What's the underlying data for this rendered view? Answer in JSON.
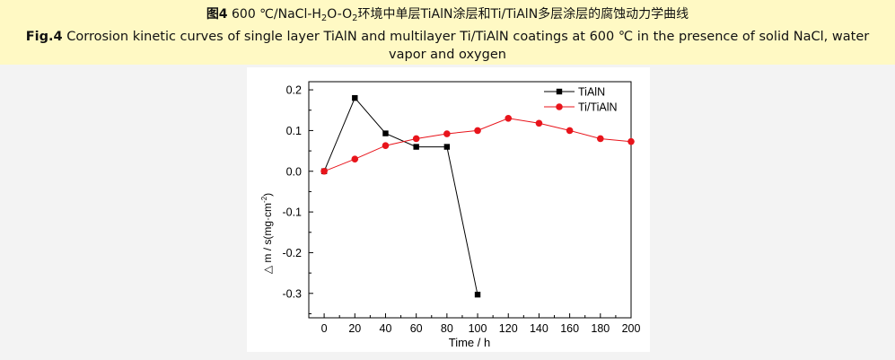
{
  "caption": {
    "cn_fig": "图4",
    "cn_text_1": " 600 ℃/NaCl-H",
    "cn_sub_1": "2",
    "cn_text_2": "O-O",
    "cn_sub_2": "2",
    "cn_text_3": "环境中单层TiAlN涂层和Ti/TiAlN多层涂层的腐蚀动力学曲线",
    "en_fig": "Fig.4",
    "en_text": " Corrosion kinetic curves of single layer TiAlN and multilayer Ti/TiAlN coatings at 600 ℃ in the presence of solid NaCl, water vapor and oxygen"
  },
  "chart_data": {
    "type": "line",
    "xlabel": "Time / h",
    "ylabel": "△ m / s(mg·cm",
    "ylabel_sup": "-2",
    "ylabel_end": ")",
    "xlim": [
      -10,
      200
    ],
    "ylim": [
      -0.36,
      0.22
    ],
    "xticks": [
      0,
      20,
      40,
      60,
      80,
      100,
      120,
      140,
      160,
      180,
      200
    ],
    "xtick_labels": [
      "0",
      "20",
      "40",
      "60",
      "80",
      "100",
      "120",
      "140",
      "160",
      "180",
      "200"
    ],
    "yticks": [
      0.2,
      0.1,
      0.0,
      -0.1,
      -0.2,
      -0.3
    ],
    "ytick_labels": [
      "0.2",
      "0.1",
      "0.0",
      "-0.1",
      "-0.2",
      "-0.3"
    ],
    "grid": false,
    "legend_position": "top-right",
    "series": [
      {
        "name": "TiAlN",
        "color": "#000000",
        "marker": "square",
        "x": [
          0,
          20,
          40,
          60,
          80,
          100
        ],
        "y": [
          0.0,
          0.18,
          0.093,
          0.06,
          0.06,
          -0.303
        ]
      },
      {
        "name": "Ti/TiAlN",
        "color": "#e8141b",
        "marker": "circle",
        "x": [
          0,
          20,
          40,
          60,
          80,
          100,
          120,
          140,
          160,
          180,
          200
        ],
        "y": [
          0.0,
          0.03,
          0.063,
          0.08,
          0.092,
          0.1,
          0.13,
          0.118,
          0.1,
          0.08,
          0.073
        ]
      }
    ]
  }
}
